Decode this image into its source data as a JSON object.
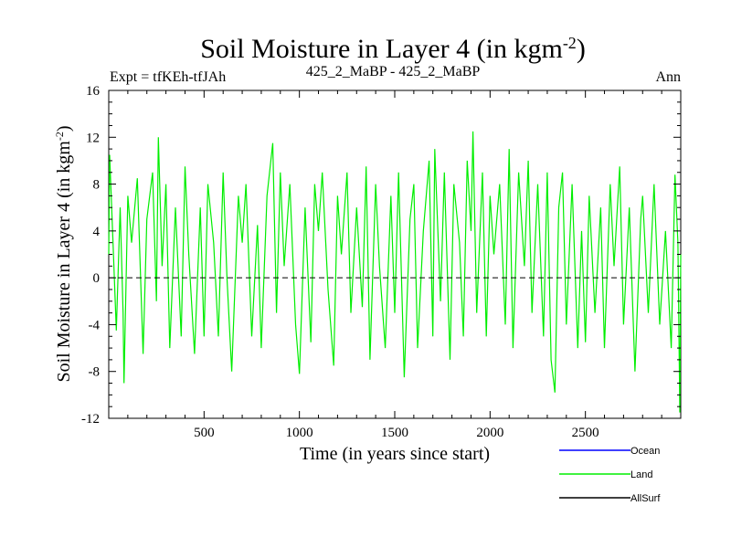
{
  "header": {
    "title_main": "Soil Moisture in Layer 4 (in kgm",
    "title_sup": "-2",
    "title_end": ")",
    "expt": "Expt = tfKEh-tfJAh",
    "subtitle": "425_2_MaBP - 425_2_MaBP",
    "period": "Ann"
  },
  "chart_data": {
    "type": "line",
    "title": "Soil Moisture in Layer 4 (in kgm-2)",
    "xlabel": "Time (in years since start)",
    "ylabel_main": "Soil Moisture in Layer 4 (in kgm",
    "ylabel_sup": "-2",
    "ylabel_end": ")",
    "xlim": [
      0,
      3000
    ],
    "ylim": [
      -12,
      16
    ],
    "x_ticks": [
      500,
      1000,
      1500,
      2000,
      2500
    ],
    "x_tick_labels": [
      "500",
      "1000",
      "1500",
      "2000",
      "2500"
    ],
    "y_ticks": [
      -12,
      -8,
      -4,
      0,
      4,
      8,
      12,
      16
    ],
    "y_tick_labels": [
      "-12",
      "-8",
      "-4",
      "0",
      "4",
      "8",
      "12",
      "16"
    ],
    "zero_line": {
      "y": 0,
      "style": "dashed",
      "color": "#000000"
    },
    "grid": false,
    "legend_position": "bottom-right",
    "series": [
      {
        "name": "Ocean",
        "color": "#0000ff",
        "points": []
      },
      {
        "name": "Land",
        "color": "#00ee00",
        "points": [
          [
            0,
            2
          ],
          [
            5,
            10.5
          ],
          [
            20,
            4
          ],
          [
            40,
            -4.5
          ],
          [
            60,
            6
          ],
          [
            75,
            -3
          ],
          [
            80,
            -9
          ],
          [
            100,
            7
          ],
          [
            120,
            3
          ],
          [
            150,
            8.5
          ],
          [
            180,
            -6.5
          ],
          [
            200,
            5
          ],
          [
            230,
            9
          ],
          [
            250,
            -2
          ],
          [
            260,
            12
          ],
          [
            280,
            1
          ],
          [
            300,
            8
          ],
          [
            320,
            -6
          ],
          [
            350,
            6
          ],
          [
            380,
            -5
          ],
          [
            400,
            9.5
          ],
          [
            420,
            2
          ],
          [
            450,
            -6.5
          ],
          [
            480,
            6
          ],
          [
            500,
            -5
          ],
          [
            520,
            8
          ],
          [
            550,
            3
          ],
          [
            575,
            -5
          ],
          [
            600,
            9
          ],
          [
            620,
            0
          ],
          [
            645,
            -8
          ],
          [
            680,
            7
          ],
          [
            700,
            3
          ],
          [
            720,
            8
          ],
          [
            750,
            -5
          ],
          [
            780,
            4.5
          ],
          [
            800,
            -6
          ],
          [
            830,
            7
          ],
          [
            860,
            11.5
          ],
          [
            880,
            -3
          ],
          [
            900,
            9
          ],
          [
            920,
            1
          ],
          [
            950,
            8
          ],
          [
            980,
            -4
          ],
          [
            1000,
            -8.2
          ],
          [
            1030,
            6
          ],
          [
            1060,
            -5.5
          ],
          [
            1080,
            8
          ],
          [
            1100,
            4
          ],
          [
            1120,
            9
          ],
          [
            1150,
            -1
          ],
          [
            1180,
            -7.5
          ],
          [
            1200,
            7
          ],
          [
            1220,
            2
          ],
          [
            1250,
            9
          ],
          [
            1270,
            -3
          ],
          [
            1300,
            6
          ],
          [
            1330,
            -2.5
          ],
          [
            1350,
            9.5
          ],
          [
            1370,
            -7
          ],
          [
            1400,
            8
          ],
          [
            1420,
            1
          ],
          [
            1450,
            -6
          ],
          [
            1480,
            7
          ],
          [
            1500,
            -3
          ],
          [
            1520,
            9
          ],
          [
            1550,
            -8.5
          ],
          [
            1580,
            5
          ],
          [
            1600,
            8
          ],
          [
            1620,
            -6
          ],
          [
            1650,
            4
          ],
          [
            1680,
            10
          ],
          [
            1700,
            -5
          ],
          [
            1710,
            11
          ],
          [
            1740,
            -2
          ],
          [
            1760,
            9
          ],
          [
            1790,
            -7
          ],
          [
            1810,
            8
          ],
          [
            1840,
            3
          ],
          [
            1860,
            -5
          ],
          [
            1880,
            10
          ],
          [
            1900,
            4
          ],
          [
            1910,
            12.5
          ],
          [
            1930,
            -3
          ],
          [
            1960,
            9
          ],
          [
            1980,
            -5
          ],
          [
            2000,
            7
          ],
          [
            2020,
            2
          ],
          [
            2050,
            8
          ],
          [
            2080,
            -4
          ],
          [
            2100,
            11
          ],
          [
            2120,
            -6
          ],
          [
            2150,
            9
          ],
          [
            2180,
            1
          ],
          [
            2200,
            10
          ],
          [
            2220,
            -3
          ],
          [
            2250,
            8
          ],
          [
            2280,
            -5
          ],
          [
            2300,
            9
          ],
          [
            2320,
            -7
          ],
          [
            2340,
            -9.8
          ],
          [
            2360,
            6
          ],
          [
            2380,
            9
          ],
          [
            2400,
            -4
          ],
          [
            2430,
            8
          ],
          [
            2460,
            -6
          ],
          [
            2480,
            4
          ],
          [
            2500,
            -5.5
          ],
          [
            2520,
            7
          ],
          [
            2550,
            -3
          ],
          [
            2580,
            6
          ],
          [
            2600,
            -6
          ],
          [
            2630,
            8
          ],
          [
            2650,
            1
          ],
          [
            2680,
            9.5
          ],
          [
            2700,
            -4
          ],
          [
            2730,
            6
          ],
          [
            2760,
            -8
          ],
          [
            2790,
            5
          ],
          [
            2800,
            7
          ],
          [
            2830,
            -3
          ],
          [
            2860,
            8
          ],
          [
            2890,
            -4
          ],
          [
            2920,
            4
          ],
          [
            2950,
            -6
          ],
          [
            2970,
            8.8
          ],
          [
            2985,
            3
          ],
          [
            2995,
            -11.5
          ],
          [
            3000,
            2
          ]
        ]
      },
      {
        "name": "AllSurf",
        "color": "#000000",
        "points": []
      }
    ]
  }
}
